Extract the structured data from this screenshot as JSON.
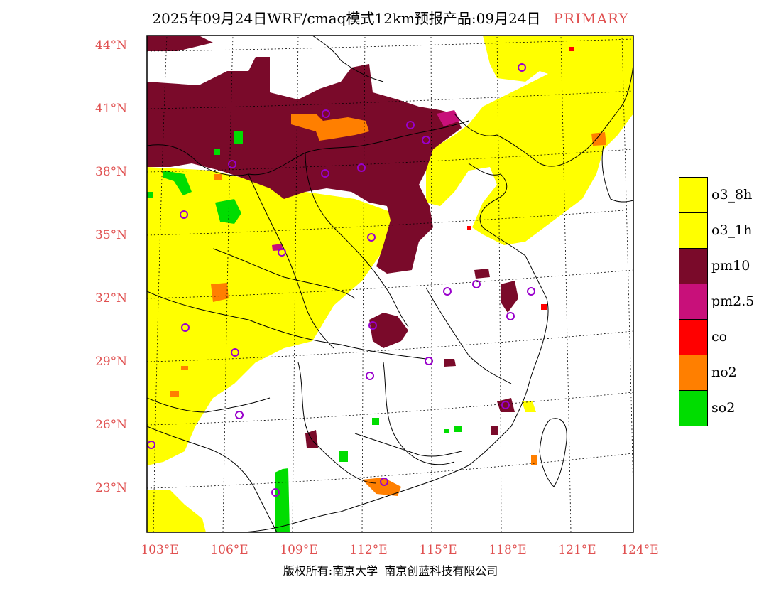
{
  "title": {
    "main": "2025年09月24日WRF/cmaq模式12km预报产品:09月24日",
    "tag": "PRIMARY",
    "tag_color": "#e05050"
  },
  "axes": {
    "lat_labels": [
      "44°N",
      "41°N",
      "38°N",
      "35°N",
      "32°N",
      "29°N",
      "26°N",
      "23°N"
    ],
    "lon_labels": [
      "103°E",
      "106°E",
      "109°E",
      "112°E",
      "115°E",
      "118°E",
      "121°E",
      "124°E"
    ],
    "label_color": "#e05050"
  },
  "legend": [
    {
      "label": "o3_8h",
      "color": "#ffff00"
    },
    {
      "label": "o3_1h",
      "color": "#ffff00"
    },
    {
      "label": "pm10",
      "color": "#7a0a2a"
    },
    {
      "label": "pm2.5",
      "color": "#c8107a"
    },
    {
      "label": "co",
      "color": "#ff0000"
    },
    {
      "label": "no2",
      "color": "#ff7f00"
    },
    {
      "label": "so2",
      "color": "#00dd00"
    }
  ],
  "footer": {
    "left": "版权所有:南京大学",
    "right": "南京创蓝科技有限公司"
  },
  "marker_color": "#9900cc"
}
